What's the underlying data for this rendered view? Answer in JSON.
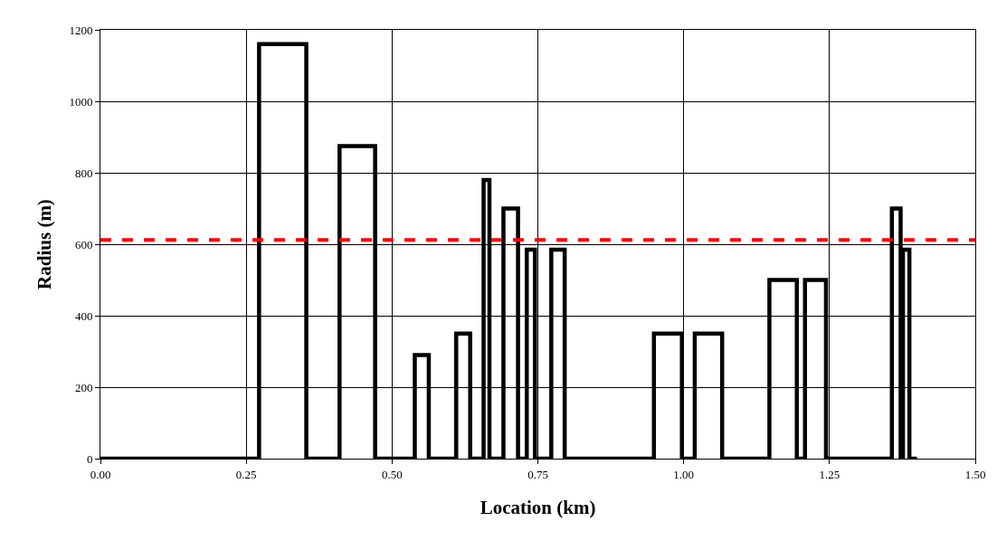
{
  "chart_data": {
    "type": "line",
    "xlabel": "Location (km)",
    "ylabel": "Radius (m)",
    "x": [
      0,
      0.272,
      0.272,
      0.353,
      0.353,
      0.41,
      0.41,
      0.471,
      0.471,
      0.539,
      0.539,
      0.563,
      0.563,
      0.61,
      0.61,
      0.634,
      0.634,
      0.657,
      0.657,
      0.667,
      0.667,
      0.691,
      0.691,
      0.716,
      0.716,
      0.731,
      0.731,
      0.745,
      0.745,
      0.773,
      0.773,
      0.796,
      0.796,
      0.949,
      0.949,
      0.997,
      0.997,
      1.019,
      1.019,
      1.066,
      1.066,
      1.147,
      1.147,
      1.194,
      1.194,
      1.208,
      1.208,
      1.244,
      1.244,
      1.357,
      1.357,
      1.372,
      1.372,
      1.376,
      1.376,
      1.387,
      1.387,
      1.4
    ],
    "series": [
      {
        "color": "#000000",
        "values": [
          0,
          0,
          1160,
          1160,
          0,
          0,
          875,
          875,
          0,
          0,
          290,
          290,
          0,
          0,
          350,
          350,
          0,
          0,
          780,
          780,
          0,
          0,
          700,
          700,
          0,
          0,
          585,
          585,
          0,
          0,
          585,
          585,
          0,
          0,
          350,
          350,
          0,
          0,
          350,
          350,
          0,
          0,
          500,
          500,
          0,
          0,
          500,
          500,
          0,
          0,
          700,
          700,
          0,
          0,
          585,
          585,
          0,
          0
        ]
      }
    ],
    "xlim": [
      0,
      1.5
    ],
    "xticks": [
      {
        "value": 0,
        "label": "0.00"
      },
      {
        "value": 0.25,
        "label": "0.25"
      },
      {
        "value": 0.5,
        "label": "0.50"
      },
      {
        "value": 0.75,
        "label": "0.75"
      },
      {
        "value": 1.0,
        "label": "1.00"
      },
      {
        "value": 1.25,
        "label": "1.25"
      },
      {
        "value": 1.5,
        "label": "1.50"
      }
    ],
    "ylim": [
      0,
      1200
    ],
    "yticks": [
      0,
      200,
      400,
      600,
      800,
      1000,
      1200
    ],
    "grid": true,
    "marker": "none",
    "line_style": "solid",
    "ref_lines": [
      {
        "axis": "y",
        "value": 612,
        "color": "#ff0000",
        "line_style": "dashed"
      }
    ]
  }
}
